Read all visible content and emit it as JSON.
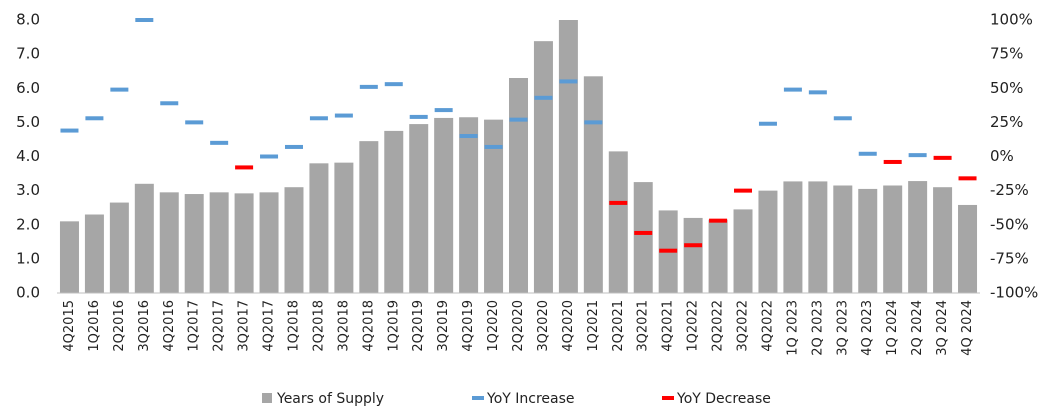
{
  "chart_data": {
    "type": "bar",
    "categories": [
      "4Q2015",
      "1Q2016",
      "2Q2016",
      "3Q2016",
      "4Q2016",
      "1Q2017",
      "2Q2017",
      "3Q2017",
      "4Q2017",
      "1Q2018",
      "2Q2018",
      "3Q2018",
      "4Q2018",
      "1Q2019",
      "2Q2019",
      "3Q2019",
      "4Q2019",
      "1Q2020",
      "2Q2020",
      "3Q2020",
      "4Q2020",
      "1Q2021",
      "2Q2021",
      "3Q2021",
      "4Q2021",
      "1Q2022",
      "2Q2022",
      "3Q2022",
      "4Q2022",
      "1Q 2023",
      "2Q 2023",
      "3Q 2023",
      "4Q 2023",
      "1Q 2024",
      "2Q 2024",
      "3Q 2024",
      "4Q 2024"
    ],
    "series": [
      {
        "name": "Years of Supply",
        "color": "#a6a6a6",
        "type": "bar",
        "values": [
          2.1,
          2.3,
          2.65,
          3.2,
          2.95,
          2.9,
          2.95,
          2.92,
          2.95,
          3.1,
          3.8,
          3.82,
          4.45,
          4.75,
          4.95,
          5.13,
          5.15,
          5.08,
          6.3,
          7.38,
          8.0,
          6.35,
          4.15,
          3.25,
          2.42,
          2.2,
          2.15,
          2.45,
          3.0,
          3.27,
          3.27,
          3.15,
          3.05,
          3.15,
          3.28,
          3.1,
          2.58
        ]
      },
      {
        "name": "YoY Increase",
        "color": "#5b9bd5",
        "type": "dash",
        "axis": "y2",
        "values": [
          19,
          28,
          49,
          100,
          39,
          25,
          10,
          null,
          0,
          7,
          28,
          30,
          51,
          53,
          29,
          34,
          15,
          7,
          27,
          43,
          55,
          25,
          null,
          null,
          null,
          null,
          null,
          null,
          24,
          49,
          47,
          28,
          2,
          null,
          1,
          null,
          null
        ]
      },
      {
        "name": "YoY Decrease",
        "color": "#ff0000",
        "type": "dash",
        "axis": "y2",
        "values": [
          null,
          null,
          null,
          null,
          null,
          null,
          null,
          -8,
          null,
          null,
          null,
          null,
          null,
          null,
          null,
          null,
          null,
          null,
          null,
          null,
          null,
          null,
          -34,
          -56,
          -69,
          -65,
          -47,
          -25,
          null,
          null,
          null,
          null,
          null,
          -4,
          null,
          -1,
          -16
        ]
      }
    ],
    "ylim": [
      0,
      8
    ],
    "yticks": [
      {
        "value": 0,
        "label": "0.0"
      },
      {
        "value": 1,
        "label": "1.0"
      },
      {
        "value": 2,
        "label": "2.0"
      },
      {
        "value": 3,
        "label": "3.0"
      },
      {
        "value": 4,
        "label": "4.0"
      },
      {
        "value": 5,
        "label": "5.0"
      },
      {
        "value": 6,
        "label": "6.0"
      },
      {
        "value": 7,
        "label": "7.0"
      },
      {
        "value": 8,
        "label": "8.0"
      }
    ],
    "y2lim": [
      -100,
      100
    ],
    "y2ticks": [
      {
        "value": -100,
        "label": "-100%"
      },
      {
        "value": -75,
        "label": "-75%"
      },
      {
        "value": -50,
        "label": "-50%"
      },
      {
        "value": -25,
        "label": "-25%"
      },
      {
        "value": 0,
        "label": "0%"
      },
      {
        "value": 25,
        "label": "25%"
      },
      {
        "value": 50,
        "label": "50%"
      },
      {
        "value": 75,
        "label": "75%"
      },
      {
        "value": 100,
        "label": "100%"
      }
    ]
  }
}
